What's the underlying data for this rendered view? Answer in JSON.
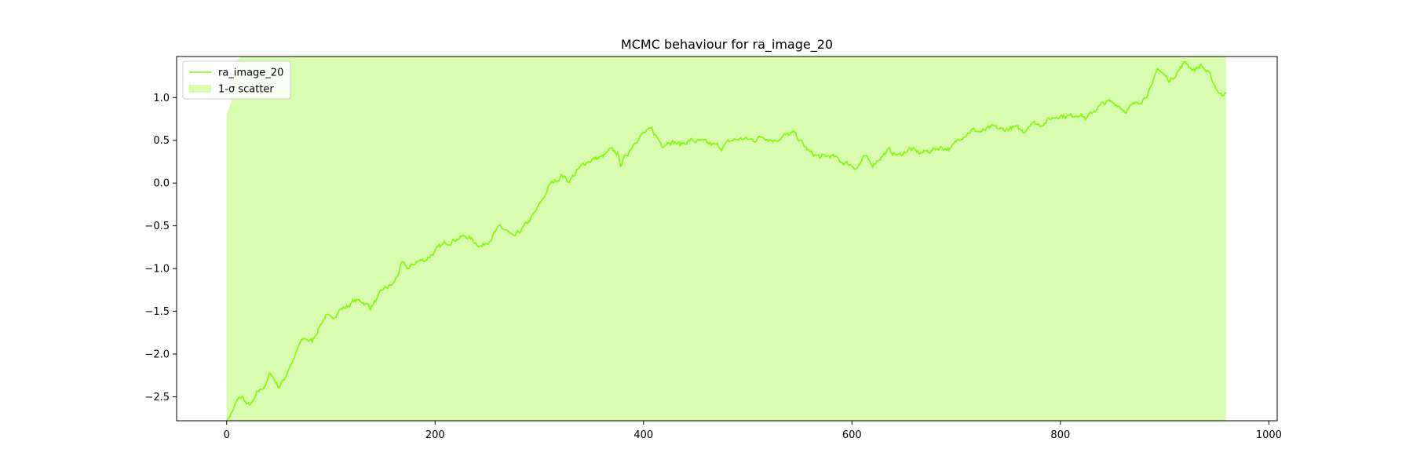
{
  "chart_data": {
    "type": "line",
    "title": "MCMC behaviour for ra_image_20",
    "xlabel": "",
    "ylabel": "",
    "xlim": [
      -48,
      1008
    ],
    "ylim": [
      -2.78,
      1.48
    ],
    "x_ticks": [
      0,
      200,
      400,
      600,
      800,
      1000
    ],
    "x_tick_labels": [
      "0",
      "200",
      "400",
      "600",
      "800",
      "1000"
    ],
    "y_ticks": [
      -2.5,
      -2.0,
      -1.5,
      -1.0,
      -0.5,
      0.0,
      0.5,
      1.0
    ],
    "y_tick_labels": [
      "−2.5",
      "−2.0",
      "−1.5",
      "−1.0",
      "−0.5",
      "0.0",
      "0.5",
      "1.0"
    ],
    "grid": false,
    "legend_location": "upper-left",
    "series": [
      {
        "name": "ra_image_20",
        "color": "#7cfc00",
        "x_start": 0,
        "x_end": 959,
        "keypoints": [
          [
            0,
            -2.78
          ],
          [
            5,
            -2.68
          ],
          [
            10,
            -2.55
          ],
          [
            15,
            -2.5
          ],
          [
            20,
            -2.6
          ],
          [
            25,
            -2.58
          ],
          [
            30,
            -2.45
          ],
          [
            38,
            -2.35
          ],
          [
            42,
            -2.22
          ],
          [
            46,
            -2.3
          ],
          [
            50,
            -2.38
          ],
          [
            55,
            -2.3
          ],
          [
            60,
            -2.15
          ],
          [
            65,
            -2.05
          ],
          [
            70,
            -1.88
          ],
          [
            75,
            -1.82
          ],
          [
            82,
            -1.85
          ],
          [
            90,
            -1.65
          ],
          [
            95,
            -1.55
          ],
          [
            100,
            -1.6
          ],
          [
            108,
            -1.48
          ],
          [
            115,
            -1.45
          ],
          [
            122,
            -1.38
          ],
          [
            130,
            -1.38
          ],
          [
            138,
            -1.45
          ],
          [
            145,
            -1.35
          ],
          [
            150,
            -1.25
          ],
          [
            160,
            -1.18
          ],
          [
            165,
            -1.05
          ],
          [
            168,
            -0.95
          ],
          [
            175,
            -1.0
          ],
          [
            182,
            -0.92
          ],
          [
            190,
            -0.9
          ],
          [
            200,
            -0.8
          ],
          [
            210,
            -0.7
          ],
          [
            220,
            -0.65
          ],
          [
            230,
            -0.62
          ],
          [
            240,
            -0.7
          ],
          [
            245,
            -0.74
          ],
          [
            255,
            -0.62
          ],
          [
            262,
            -0.52
          ],
          [
            268,
            -0.55
          ],
          [
            275,
            -0.65
          ],
          [
            283,
            -0.55
          ],
          [
            290,
            -0.45
          ],
          [
            296,
            -0.35
          ],
          [
            305,
            -0.15
          ],
          [
            310,
            -0.02
          ],
          [
            318,
            0.05
          ],
          [
            322,
            0.1
          ],
          [
            328,
            0.02
          ],
          [
            335,
            0.12
          ],
          [
            345,
            0.25
          ],
          [
            352,
            0.28
          ],
          [
            360,
            0.3
          ],
          [
            368,
            0.38
          ],
          [
            375,
            0.35
          ],
          [
            378,
            0.22
          ],
          [
            385,
            0.35
          ],
          [
            392,
            0.5
          ],
          [
            400,
            0.58
          ],
          [
            408,
            0.62
          ],
          [
            412,
            0.55
          ],
          [
            418,
            0.45
          ],
          [
            425,
            0.5
          ],
          [
            435,
            0.45
          ],
          [
            445,
            0.5
          ],
          [
            455,
            0.48
          ],
          [
            465,
            0.45
          ],
          [
            475,
            0.42
          ],
          [
            485,
            0.5
          ],
          [
            495,
            0.52
          ],
          [
            505,
            0.5
          ],
          [
            515,
            0.55
          ],
          [
            525,
            0.5
          ],
          [
            535,
            0.55
          ],
          [
            545,
            0.58
          ],
          [
            553,
            0.45
          ],
          [
            560,
            0.35
          ],
          [
            570,
            0.3
          ],
          [
            580,
            0.32
          ],
          [
            590,
            0.25
          ],
          [
            598,
            0.22
          ],
          [
            605,
            0.18
          ],
          [
            612,
            0.3
          ],
          [
            620,
            0.22
          ],
          [
            627,
            0.3
          ],
          [
            635,
            0.38
          ],
          [
            645,
            0.32
          ],
          [
            655,
            0.4
          ],
          [
            665,
            0.35
          ],
          [
            675,
            0.38
          ],
          [
            685,
            0.42
          ],
          [
            695,
            0.4
          ],
          [
            705,
            0.55
          ],
          [
            715,
            0.62
          ],
          [
            725,
            0.6
          ],
          [
            735,
            0.65
          ],
          [
            745,
            0.62
          ],
          [
            755,
            0.65
          ],
          [
            765,
            0.6
          ],
          [
            772,
            0.72
          ],
          [
            780,
            0.68
          ],
          [
            790,
            0.75
          ],
          [
            800,
            0.8
          ],
          [
            810,
            0.78
          ],
          [
            818,
            0.82
          ],
          [
            825,
            0.75
          ],
          [
            835,
            0.88
          ],
          [
            845,
            0.95
          ],
          [
            855,
            0.92
          ],
          [
            862,
            0.85
          ],
          [
            872,
            0.92
          ],
          [
            880,
            1.0
          ],
          [
            888,
            1.12
          ],
          [
            893,
            1.35
          ],
          [
            898,
            1.28
          ],
          [
            905,
            1.2
          ],
          [
            912,
            1.3
          ],
          [
            920,
            1.42
          ],
          [
            928,
            1.32
          ],
          [
            935,
            1.38
          ],
          [
            942,
            1.28
          ],
          [
            950,
            1.1
          ],
          [
            955,
            1.02
          ],
          [
            959,
            1.1
          ]
        ]
      },
      {
        "name": "1-σ scatter",
        "color": "#d9fcb0",
        "type": "area",
        "x_start": 0,
        "x_end": 959,
        "upper_keypoints": [
          [
            0,
            0.8
          ],
          [
            5,
            0.97
          ],
          [
            10,
            1.48
          ],
          [
            959,
            1.48
          ]
        ],
        "lower": -2.78
      }
    ],
    "legend": [
      {
        "label": "ra_image_20",
        "kind": "line",
        "color": "#7cfc00"
      },
      {
        "label": "1-σ scatter",
        "kind": "patch",
        "color": "#d9fcb0"
      }
    ]
  }
}
